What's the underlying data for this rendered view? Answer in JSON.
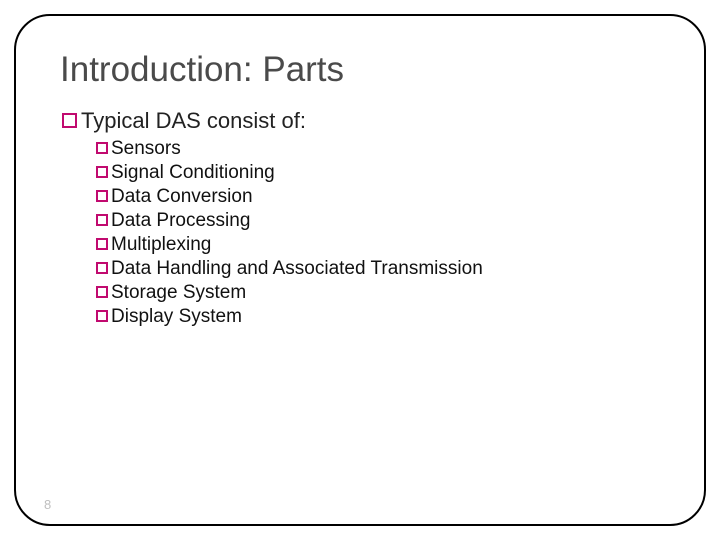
{
  "slide": {
    "title": "Introduction: Parts",
    "title_color": "#4a4a4a",
    "title_fontsize": 35,
    "frame_border_color": "#000000",
    "frame_border_radius": 36,
    "background_color": "#ffffff",
    "level1": {
      "bullet_color": "#c10a6f",
      "text": "Typical DAS consist of:",
      "text_color": "#222222",
      "fontsize": 22
    },
    "level2": {
      "bullet_color": "#c10a6f",
      "text_color": "#111111",
      "fontsize": 19,
      "items": [
        "Sensors",
        "Signal Conditioning",
        "Data Conversion",
        "Data Processing",
        "Multiplexing",
        "Data Handling and Associated Transmission",
        "Storage System",
        "Display System"
      ]
    },
    "page_number": "8",
    "page_number_color": "#bfbfbf"
  }
}
